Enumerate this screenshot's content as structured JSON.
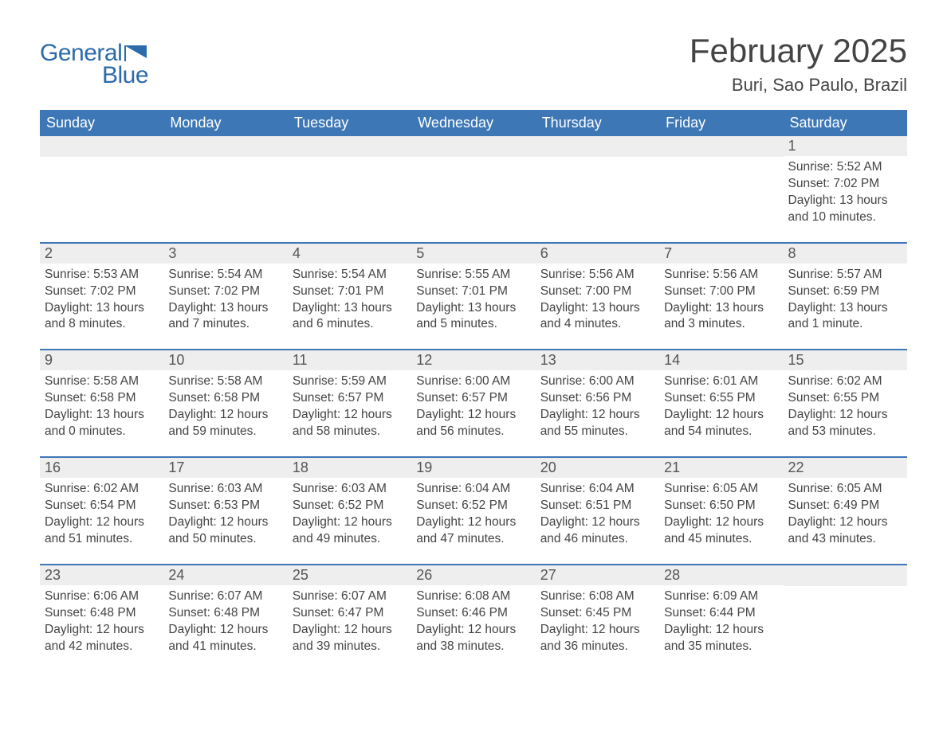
{
  "logo": {
    "general": "General",
    "blue": "Blue",
    "flag_color": "#2b6aab"
  },
  "title": "February 2025",
  "location": "Buri, Sao Paulo, Brazil",
  "colors": {
    "header_bg": "#3d77b6",
    "header_text": "#ffffff",
    "daynum_bg": "#eeeeee",
    "row_border": "#3d77b6",
    "text": "#444444",
    "page_bg": "#ffffff"
  },
  "weekdays": [
    "Sunday",
    "Monday",
    "Tuesday",
    "Wednesday",
    "Thursday",
    "Friday",
    "Saturday"
  ],
  "weeks": [
    [
      {
        "day": null
      },
      {
        "day": null
      },
      {
        "day": null
      },
      {
        "day": null
      },
      {
        "day": null
      },
      {
        "day": null
      },
      {
        "day": "1",
        "sunrise": "Sunrise: 5:52 AM",
        "sunset": "Sunset: 7:02 PM",
        "daylight": "Daylight: 13 hours and 10 minutes."
      }
    ],
    [
      {
        "day": "2",
        "sunrise": "Sunrise: 5:53 AM",
        "sunset": "Sunset: 7:02 PM",
        "daylight": "Daylight: 13 hours and 8 minutes."
      },
      {
        "day": "3",
        "sunrise": "Sunrise: 5:54 AM",
        "sunset": "Sunset: 7:02 PM",
        "daylight": "Daylight: 13 hours and 7 minutes."
      },
      {
        "day": "4",
        "sunrise": "Sunrise: 5:54 AM",
        "sunset": "Sunset: 7:01 PM",
        "daylight": "Daylight: 13 hours and 6 minutes."
      },
      {
        "day": "5",
        "sunrise": "Sunrise: 5:55 AM",
        "sunset": "Sunset: 7:01 PM",
        "daylight": "Daylight: 13 hours and 5 minutes."
      },
      {
        "day": "6",
        "sunrise": "Sunrise: 5:56 AM",
        "sunset": "Sunset: 7:00 PM",
        "daylight": "Daylight: 13 hours and 4 minutes."
      },
      {
        "day": "7",
        "sunrise": "Sunrise: 5:56 AM",
        "sunset": "Sunset: 7:00 PM",
        "daylight": "Daylight: 13 hours and 3 minutes."
      },
      {
        "day": "8",
        "sunrise": "Sunrise: 5:57 AM",
        "sunset": "Sunset: 6:59 PM",
        "daylight": "Daylight: 13 hours and 1 minute."
      }
    ],
    [
      {
        "day": "9",
        "sunrise": "Sunrise: 5:58 AM",
        "sunset": "Sunset: 6:58 PM",
        "daylight": "Daylight: 13 hours and 0 minutes."
      },
      {
        "day": "10",
        "sunrise": "Sunrise: 5:58 AM",
        "sunset": "Sunset: 6:58 PM",
        "daylight": "Daylight: 12 hours and 59 minutes."
      },
      {
        "day": "11",
        "sunrise": "Sunrise: 5:59 AM",
        "sunset": "Sunset: 6:57 PM",
        "daylight": "Daylight: 12 hours and 58 minutes."
      },
      {
        "day": "12",
        "sunrise": "Sunrise: 6:00 AM",
        "sunset": "Sunset: 6:57 PM",
        "daylight": "Daylight: 12 hours and 56 minutes."
      },
      {
        "day": "13",
        "sunrise": "Sunrise: 6:00 AM",
        "sunset": "Sunset: 6:56 PM",
        "daylight": "Daylight: 12 hours and 55 minutes."
      },
      {
        "day": "14",
        "sunrise": "Sunrise: 6:01 AM",
        "sunset": "Sunset: 6:55 PM",
        "daylight": "Daylight: 12 hours and 54 minutes."
      },
      {
        "day": "15",
        "sunrise": "Sunrise: 6:02 AM",
        "sunset": "Sunset: 6:55 PM",
        "daylight": "Daylight: 12 hours and 53 minutes."
      }
    ],
    [
      {
        "day": "16",
        "sunrise": "Sunrise: 6:02 AM",
        "sunset": "Sunset: 6:54 PM",
        "daylight": "Daylight: 12 hours and 51 minutes."
      },
      {
        "day": "17",
        "sunrise": "Sunrise: 6:03 AM",
        "sunset": "Sunset: 6:53 PM",
        "daylight": "Daylight: 12 hours and 50 minutes."
      },
      {
        "day": "18",
        "sunrise": "Sunrise: 6:03 AM",
        "sunset": "Sunset: 6:52 PM",
        "daylight": "Daylight: 12 hours and 49 minutes."
      },
      {
        "day": "19",
        "sunrise": "Sunrise: 6:04 AM",
        "sunset": "Sunset: 6:52 PM",
        "daylight": "Daylight: 12 hours and 47 minutes."
      },
      {
        "day": "20",
        "sunrise": "Sunrise: 6:04 AM",
        "sunset": "Sunset: 6:51 PM",
        "daylight": "Daylight: 12 hours and 46 minutes."
      },
      {
        "day": "21",
        "sunrise": "Sunrise: 6:05 AM",
        "sunset": "Sunset: 6:50 PM",
        "daylight": "Daylight: 12 hours and 45 minutes."
      },
      {
        "day": "22",
        "sunrise": "Sunrise: 6:05 AM",
        "sunset": "Sunset: 6:49 PM",
        "daylight": "Daylight: 12 hours and 43 minutes."
      }
    ],
    [
      {
        "day": "23",
        "sunrise": "Sunrise: 6:06 AM",
        "sunset": "Sunset: 6:48 PM",
        "daylight": "Daylight: 12 hours and 42 minutes."
      },
      {
        "day": "24",
        "sunrise": "Sunrise: 6:07 AM",
        "sunset": "Sunset: 6:48 PM",
        "daylight": "Daylight: 12 hours and 41 minutes."
      },
      {
        "day": "25",
        "sunrise": "Sunrise: 6:07 AM",
        "sunset": "Sunset: 6:47 PM",
        "daylight": "Daylight: 12 hours and 39 minutes."
      },
      {
        "day": "26",
        "sunrise": "Sunrise: 6:08 AM",
        "sunset": "Sunset: 6:46 PM",
        "daylight": "Daylight: 12 hours and 38 minutes."
      },
      {
        "day": "27",
        "sunrise": "Sunrise: 6:08 AM",
        "sunset": "Sunset: 6:45 PM",
        "daylight": "Daylight: 12 hours and 36 minutes."
      },
      {
        "day": "28",
        "sunrise": "Sunrise: 6:09 AM",
        "sunset": "Sunset: 6:44 PM",
        "daylight": "Daylight: 12 hours and 35 minutes."
      },
      {
        "day": null
      }
    ]
  ]
}
